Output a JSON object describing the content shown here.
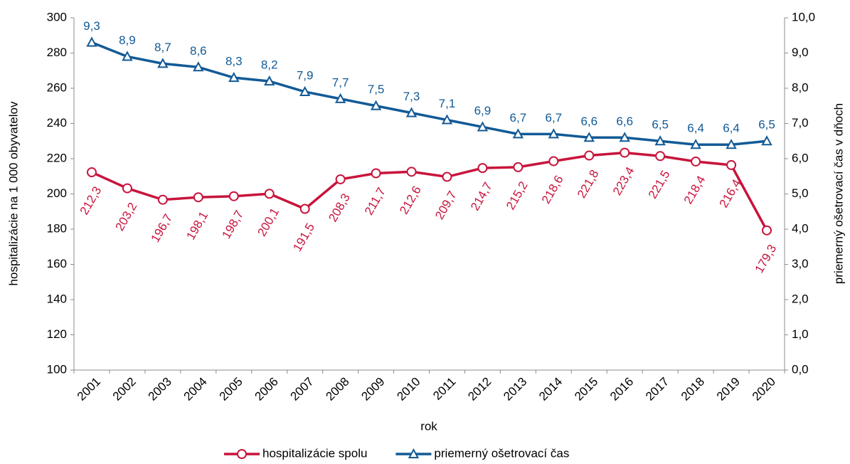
{
  "chart_data": {
    "type": "line",
    "categories": [
      "2001",
      "2002",
      "2003",
      "2004",
      "2005",
      "2006",
      "2007",
      "2008",
      "2009",
      "2010",
      "2011",
      "2012",
      "2013",
      "2014",
      "2015",
      "2016",
      "2017",
      "2018",
      "2019",
      "2020"
    ],
    "series": [
      {
        "name": "hospitalizácie spolu",
        "color": "#c8143c",
        "marker": "circle",
        "axis": "y",
        "values": [
          212.3,
          203.2,
          196.7,
          198.1,
          198.7,
          200.1,
          191.5,
          208.3,
          211.7,
          212.6,
          209.7,
          214.7,
          215.2,
          218.6,
          221.8,
          223.4,
          221.5,
          218.4,
          216.4,
          179.3
        ],
        "value_labels": [
          "212,3",
          "203,2",
          "196,7",
          "198,1",
          "198,7",
          "200,1",
          "191,5",
          "208,3",
          "211,7",
          "212,6",
          "209,7",
          "214,7",
          "215,2",
          "218,6",
          "221,8",
          "223,4",
          "221,5",
          "218,4",
          "216,4",
          "179,3"
        ]
      },
      {
        "name": "priemerný ošetrovací čas",
        "color": "#125a96",
        "marker": "triangle",
        "axis": "y2",
        "values": [
          9.3,
          8.9,
          8.7,
          8.6,
          8.3,
          8.2,
          7.9,
          7.7,
          7.5,
          7.3,
          7.1,
          6.9,
          6.7,
          6.7,
          6.6,
          6.6,
          6.5,
          6.4,
          6.4,
          6.5
        ],
        "value_labels": [
          "9,3",
          "8,9",
          "8,7",
          "8,6",
          "8,3",
          "8,2",
          "7,9",
          "7,7",
          "7,5",
          "7,3",
          "7,1",
          "6,9",
          "6,7",
          "6,7",
          "6,6",
          "6,6",
          "6,5",
          "6,4",
          "6,4",
          "6,5"
        ]
      }
    ],
    "xlabel": "rok",
    "ylabel": "hospitalizácie na 1 000 obyvatelov",
    "y2label": "priemerný ošetrovací čas v dňoch",
    "ylim": [
      100,
      300
    ],
    "yticks": [
      100,
      120,
      140,
      160,
      180,
      200,
      220,
      240,
      260,
      280,
      300
    ],
    "y2lim": [
      0,
      10
    ],
    "y2ticks": [
      {
        "value": 0,
        "label": "0,0"
      },
      {
        "value": 1,
        "label": "1,0"
      },
      {
        "value": 2,
        "label": "2,0"
      },
      {
        "value": 3,
        "label": "3,0"
      },
      {
        "value": 4,
        "label": "4,0"
      },
      {
        "value": 5,
        "label": "5,0"
      },
      {
        "value": 6,
        "label": "6,0"
      },
      {
        "value": 7,
        "label": "7,0"
      },
      {
        "value": 8,
        "label": "8,0"
      },
      {
        "value": 9,
        "label": "9,0"
      },
      {
        "value": 10,
        "label": "10,0"
      }
    ],
    "grid": false,
    "legend": "bottom"
  }
}
